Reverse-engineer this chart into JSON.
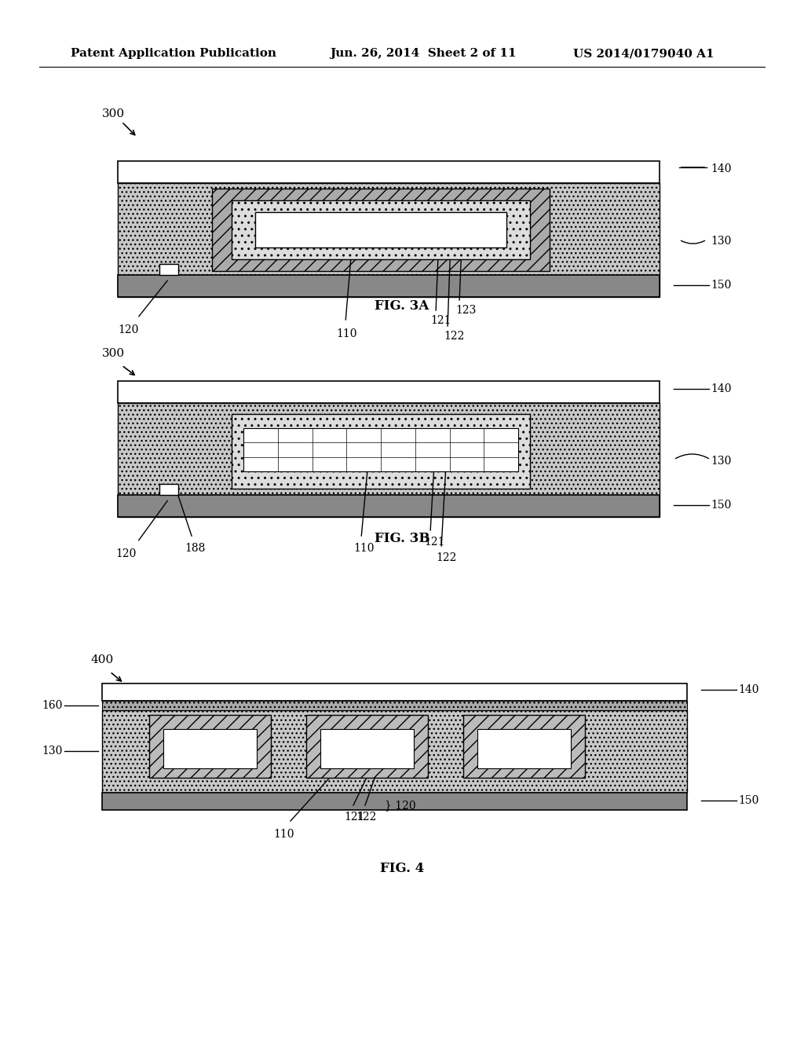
{
  "bg_color": "#ffffff",
  "header_left": "Patent Application Publication",
  "header_center": "Jun. 26, 2014  Sheet 2 of 11",
  "header_right": "US 2014/0179040 A1",
  "fig3a_label": "FIG. 3A",
  "fig3b_label": "FIG. 3B",
  "fig4_label": "FIG. 4",
  "ref300_1": "300",
  "ref300_2": "300",
  "ref400": "400"
}
